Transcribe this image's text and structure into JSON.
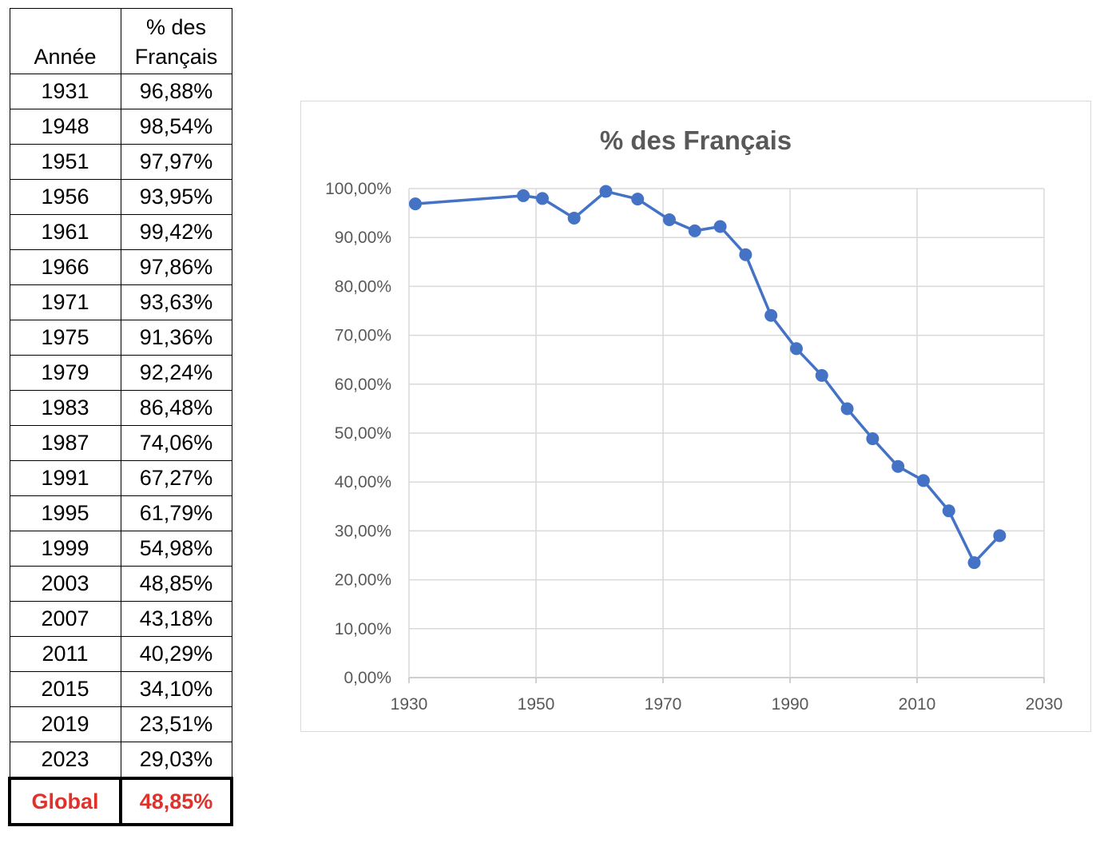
{
  "table": {
    "header_year": "Année",
    "header_pct_line1": "% des",
    "header_pct_line2": "Français",
    "rows": [
      {
        "year": "1931",
        "pct": "96,88%"
      },
      {
        "year": "1948",
        "pct": "98,54%"
      },
      {
        "year": "1951",
        "pct": "97,97%"
      },
      {
        "year": "1956",
        "pct": "93,95%"
      },
      {
        "year": "1961",
        "pct": "99,42%"
      },
      {
        "year": "1966",
        "pct": "97,86%"
      },
      {
        "year": "1971",
        "pct": "93,63%"
      },
      {
        "year": "1975",
        "pct": "91,36%"
      },
      {
        "year": "1979",
        "pct": "92,24%"
      },
      {
        "year": "1983",
        "pct": "86,48%"
      },
      {
        "year": "1987",
        "pct": "74,06%"
      },
      {
        "year": "1991",
        "pct": "67,27%"
      },
      {
        "year": "1995",
        "pct": "61,79%"
      },
      {
        "year": "1999",
        "pct": "54,98%"
      },
      {
        "year": "2003",
        "pct": "48,85%"
      },
      {
        "year": "2007",
        "pct": "43,18%"
      },
      {
        "year": "2011",
        "pct": "40,29%"
      },
      {
        "year": "2015",
        "pct": "34,10%"
      },
      {
        "year": "2019",
        "pct": "23,51%"
      },
      {
        "year": "2023",
        "pct": "29,03%"
      }
    ],
    "total_label": "Global",
    "total_value": "48,85%",
    "total_color": "#e0312a"
  },
  "chart_data": {
    "type": "scatter",
    "title": "% des Français",
    "xlabel": "",
    "ylabel": "",
    "xlim": [
      1930,
      2030
    ],
    "ylim": [
      0,
      100
    ],
    "x_ticks": [
      1930,
      1950,
      1970,
      1990,
      2010,
      2030
    ],
    "y_ticks": [
      "0,00%",
      "10,00%",
      "20,00%",
      "30,00%",
      "40,00%",
      "50,00%",
      "60,00%",
      "70,00%",
      "80,00%",
      "90,00%",
      "100,00%"
    ],
    "grid": true,
    "legend": "none",
    "line_color": "#4472c4",
    "series": [
      {
        "x": [
          1931,
          1948,
          1951,
          1956,
          1961,
          1966,
          1971,
          1975,
          1979,
          1983,
          1987,
          1991,
          1995,
          1999,
          2003,
          2007,
          2011,
          2015,
          2019,
          2023
        ],
        "y": [
          96.88,
          98.54,
          97.97,
          93.95,
          99.42,
          97.86,
          93.63,
          91.36,
          92.24,
          86.48,
          74.06,
          67.27,
          61.79,
          54.98,
          48.85,
          43.18,
          40.29,
          34.1,
          23.51,
          29.03
        ]
      }
    ]
  }
}
